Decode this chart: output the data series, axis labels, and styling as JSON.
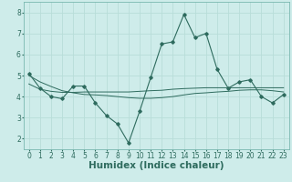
{
  "xlabel": "Humidex (Indice chaleur)",
  "bg_color": "#ceecea",
  "line_color": "#2e6b5e",
  "x_values": [
    0,
    1,
    2,
    3,
    4,
    5,
    6,
    7,
    8,
    9,
    10,
    11,
    12,
    13,
    14,
    15,
    16,
    17,
    18,
    19,
    20,
    21,
    22,
    23
  ],
  "y_main": [
    5.1,
    4.4,
    4.0,
    3.9,
    4.5,
    4.5,
    3.7,
    3.1,
    2.7,
    1.8,
    3.3,
    4.9,
    6.5,
    6.6,
    7.9,
    6.8,
    7.0,
    5.3,
    4.4,
    4.7,
    4.8,
    4.0,
    3.7,
    4.1
  ],
  "y_trend1": [
    4.6,
    4.35,
    4.25,
    4.2,
    4.2,
    4.22,
    4.22,
    4.22,
    4.22,
    4.22,
    4.25,
    4.28,
    4.3,
    4.35,
    4.38,
    4.4,
    4.42,
    4.42,
    4.42,
    4.42,
    4.42,
    4.42,
    4.42,
    4.42
  ],
  "y_trend2": [
    5.0,
    4.7,
    4.48,
    4.28,
    4.18,
    4.1,
    4.08,
    4.05,
    4.0,
    3.95,
    3.92,
    3.92,
    3.95,
    4.0,
    4.08,
    4.15,
    4.18,
    4.22,
    4.25,
    4.3,
    4.32,
    4.32,
    4.28,
    4.22
  ],
  "ylim": [
    1.5,
    8.5
  ],
  "xlim": [
    -0.5,
    23.5
  ],
  "yticks": [
    2,
    3,
    4,
    5,
    6,
    7,
    8
  ],
  "xticks": [
    0,
    1,
    2,
    3,
    4,
    5,
    6,
    7,
    8,
    9,
    10,
    11,
    12,
    13,
    14,
    15,
    16,
    17,
    18,
    19,
    20,
    21,
    22,
    23
  ],
  "grid_color": "#b8ddd9",
  "tick_fontsize": 5.5,
  "xlabel_fontsize": 7.5,
  "spine_color": "#7ab8b0"
}
